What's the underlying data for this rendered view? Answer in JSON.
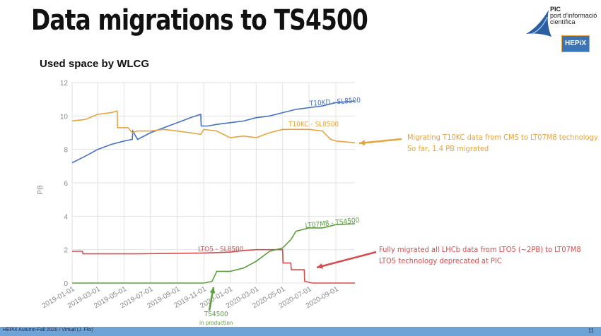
{
  "slide": {
    "title": "Data migrations to TS4500",
    "subtitle": "Used space by WLCG",
    "footer": "HEPiX Autumn-Fall 2020 / Virtual (J. Flix)",
    "page_number": "11"
  },
  "logos": {
    "pic_line1": "PIC",
    "pic_line2": "port d'informació",
    "pic_line3": "científica",
    "hepix": "HEPiX"
  },
  "annotations": {
    "orange_line1": "Migrating T10KC data from CMS to LT07M8 technology",
    "orange_line2": "So far, 1.4 PB migrated",
    "red_line1": "Fully migrated all LHCb data from LTO5 (~2PB) to LT07M8",
    "red_line2": "LTO5 technology deprecated at PIC",
    "green_line1": "TS4500",
    "green_line2": "in production"
  },
  "chart_data": {
    "type": "line",
    "title": "",
    "ylabel": "PB",
    "xlabel": "",
    "ylim": [
      0,
      12
    ],
    "yticks": [
      0,
      2,
      4,
      6,
      8,
      10,
      12
    ],
    "xticks": [
      "2019-01-01",
      "2019-03-01",
      "2019-05-01",
      "2019-07-01",
      "2019-09-01",
      "2019-11-01",
      "2020-01-01",
      "2020-03-01",
      "2020-05-01",
      "2020-07-01",
      "2020-09-01"
    ],
    "xlim": [
      "2019-01-01",
      "2020-10-15"
    ],
    "grid": true,
    "series": [
      {
        "name": "T10KD - SL8500",
        "color": "#4472c4",
        "points": [
          [
            "2019-01-01",
            7.2
          ],
          [
            "2019-02-01",
            7.6
          ],
          [
            "2019-03-01",
            8.0
          ],
          [
            "2019-04-01",
            8.3
          ],
          [
            "2019-05-01",
            8.5
          ],
          [
            "2019-05-20",
            8.6
          ],
          [
            "2019-05-21",
            9.1
          ],
          [
            "2019-06-01",
            8.6
          ],
          [
            "2019-07-01",
            9.0
          ],
          [
            "2019-08-01",
            9.3
          ],
          [
            "2019-09-01",
            9.6
          ],
          [
            "2019-10-01",
            9.9
          ],
          [
            "2019-10-25",
            10.1
          ],
          [
            "2019-10-26",
            9.4
          ],
          [
            "2019-11-10",
            9.4
          ],
          [
            "2019-12-01",
            9.5
          ],
          [
            "2020-01-01",
            9.6
          ],
          [
            "2020-02-01",
            9.7
          ],
          [
            "2020-03-01",
            9.9
          ],
          [
            "2020-04-01",
            10.0
          ],
          [
            "2020-05-01",
            10.2
          ],
          [
            "2020-06-01",
            10.4
          ],
          [
            "2020-07-01",
            10.5
          ],
          [
            "2020-08-01",
            10.6
          ],
          [
            "2020-09-01",
            10.8
          ],
          [
            "2020-10-15",
            10.9
          ]
        ]
      },
      {
        "name": "T10KC - SL8500",
        "color": "#e8a33d",
        "points": [
          [
            "2019-01-01",
            9.7
          ],
          [
            "2019-02-01",
            9.8
          ],
          [
            "2019-03-01",
            10.1
          ],
          [
            "2019-04-01",
            10.2
          ],
          [
            "2019-04-15",
            10.3
          ],
          [
            "2019-04-16",
            9.3
          ],
          [
            "2019-05-10",
            9.3
          ],
          [
            "2019-05-20",
            9.0
          ],
          [
            "2019-06-01",
            9.1
          ],
          [
            "2019-07-01",
            9.1
          ],
          [
            "2019-08-01",
            9.2
          ],
          [
            "2019-09-01",
            9.1
          ],
          [
            "2019-10-01",
            9.0
          ],
          [
            "2019-10-25",
            8.9
          ],
          [
            "2019-11-01",
            9.2
          ],
          [
            "2019-12-01",
            9.1
          ],
          [
            "2020-01-01",
            8.7
          ],
          [
            "2020-02-01",
            8.8
          ],
          [
            "2020-03-01",
            8.7
          ],
          [
            "2020-04-01",
            9.0
          ],
          [
            "2020-05-01",
            9.2
          ],
          [
            "2020-06-01",
            9.2
          ],
          [
            "2020-07-01",
            9.2
          ],
          [
            "2020-08-01",
            9.1
          ],
          [
            "2020-08-20",
            8.6
          ],
          [
            "2020-09-01",
            8.5
          ],
          [
            "2020-10-15",
            8.4
          ]
        ]
      },
      {
        "name": "LTO5 - SL8500",
        "color": "#d64c4c",
        "points": [
          [
            "2019-01-01",
            1.9
          ],
          [
            "2019-01-25",
            1.9
          ],
          [
            "2019-01-26",
            1.75
          ],
          [
            "2019-06-01",
            1.75
          ],
          [
            "2019-11-01",
            1.8
          ],
          [
            "2020-01-01",
            1.85
          ],
          [
            "2020-02-01",
            1.95
          ],
          [
            "2020-03-01",
            2.0
          ],
          [
            "2020-05-01",
            2.0
          ],
          [
            "2020-05-02",
            1.2
          ],
          [
            "2020-05-20",
            1.2
          ],
          [
            "2020-05-21",
            0.8
          ],
          [
            "2020-06-20",
            0.8
          ],
          [
            "2020-06-21",
            0.1
          ],
          [
            "2020-07-10",
            0.0
          ],
          [
            "2020-10-15",
            0.0
          ]
        ]
      },
      {
        "name": "LT07M8 - TS4500",
        "color": "#5a9e3e",
        "points": [
          [
            "2019-01-01",
            0.0
          ],
          [
            "2019-11-01",
            0.0
          ],
          [
            "2019-11-20",
            0.1
          ],
          [
            "2019-12-01",
            0.7
          ],
          [
            "2020-01-01",
            0.7
          ],
          [
            "2020-02-01",
            0.9
          ],
          [
            "2020-03-01",
            1.3
          ],
          [
            "2020-04-01",
            1.9
          ],
          [
            "2020-05-01",
            2.1
          ],
          [
            "2020-05-20",
            2.6
          ],
          [
            "2020-06-01",
            3.1
          ],
          [
            "2020-07-01",
            3.3
          ],
          [
            "2020-08-01",
            3.3
          ],
          [
            "2020-09-01",
            3.5
          ],
          [
            "2020-10-15",
            3.55
          ]
        ]
      }
    ]
  }
}
